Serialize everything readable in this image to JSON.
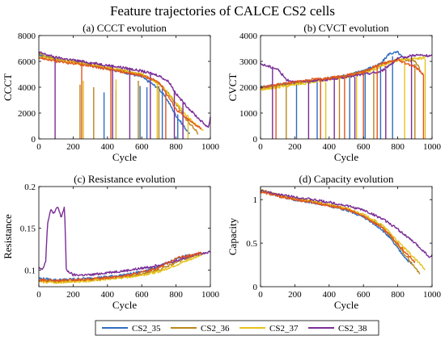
{
  "figure": {
    "title": "Feature trajectories of CALCE CS2 cells"
  },
  "legend": {
    "placement": "bottom",
    "items": [
      {
        "label": "CS2_35",
        "color": "#2f6cc0"
      },
      {
        "label": "CS2_36",
        "color": "#b8861b"
      },
      {
        "label": "CS2_37",
        "color": "#e6c21a"
      },
      {
        "label": "CS2_38",
        "color": "#7a2d96"
      }
    ]
  },
  "chart_data": [
    {
      "type": "line",
      "title": "(a) CCCT evolution",
      "xlabel": "Cycle",
      "ylabel": "CCCT",
      "xlim": [
        0,
        1000
      ],
      "ylim": [
        0,
        8000
      ],
      "xticks": [
        0,
        200,
        400,
        600,
        800,
        1000
      ],
      "yticks": [
        0,
        2000,
        4000,
        6000,
        8000
      ],
      "grid": false,
      "series": [
        {
          "name": "CS2_35",
          "color": "#2f6cc0",
          "x": [
            0,
            100,
            200,
            300,
            400,
            500,
            600,
            700,
            750,
            800,
            850,
            880
          ],
          "y": [
            6500,
            6150,
            5950,
            5700,
            5450,
            5150,
            4800,
            3900,
            3000,
            1800,
            900,
            350
          ],
          "drops": [
            [
              380,
              3600
            ],
            [
              450,
              3800
            ],
            [
              590,
              4100
            ],
            [
              630,
              4000
            ],
            [
              720,
              3900
            ],
            [
              810,
              1900
            ]
          ]
        },
        {
          "name": "CS2_36",
          "color": "#b8861b",
          "x": [
            0,
            100,
            200,
            300,
            400,
            500,
            600,
            700,
            750,
            800,
            860,
            930
          ],
          "y": [
            6600,
            6200,
            6000,
            5800,
            5500,
            5300,
            5000,
            4300,
            3600,
            2700,
            1500,
            400
          ],
          "drops": [
            [
              240,
              4200
            ],
            [
              320,
              4000
            ],
            [
              580,
              4500
            ],
            [
              700,
              4100
            ]
          ]
        },
        {
          "name": "CS2_37",
          "color": "#e6c21a",
          "x": [
            0,
            100,
            200,
            300,
            400,
            500,
            600,
            700,
            750,
            800,
            850,
            900,
            960
          ],
          "y": [
            6400,
            6100,
            5900,
            5700,
            5500,
            5250,
            5000,
            4300,
            3600,
            2800,
            2000,
            1300,
            600
          ],
          "drops": [
            [
              260,
              4500
            ],
            [
              450,
              4600
            ],
            [
              690,
              4300
            ],
            [
              870,
              1500
            ]
          ]
        },
        {
          "name": "CS2_38",
          "color": "#7a2d96",
          "x": [
            0,
            100,
            200,
            300,
            400,
            500,
            600,
            700,
            760,
            800,
            850,
            900,
            960,
            990,
            1000
          ],
          "y": [
            6700,
            6300,
            6100,
            5900,
            5700,
            5500,
            5250,
            4900,
            4400,
            3500,
            2700,
            2000,
            1200,
            900,
            1700
          ],
          "drops": [
            [
              95,
              6200
            ],
            [
              430,
              5700
            ],
            [
              530,
              5500
            ],
            [
              650,
              5200
            ],
            [
              790,
              3700
            ],
            [
              840,
              2800
            ]
          ]
        },
        {
          "name": "",
          "color": "#e2561f",
          "x": [
            0,
            100,
            200,
            300,
            400,
            500,
            600,
            700,
            750,
            800,
            850,
            900,
            950
          ],
          "y": [
            6300,
            6000,
            5850,
            5650,
            5400,
            5150,
            4900,
            4400,
            3400,
            2300,
            1700,
            1200,
            800
          ],
          "drops": [
            [
              250,
              5900
            ],
            [
              420,
              5450
            ],
            [
              740,
              3700
            ]
          ]
        }
      ]
    },
    {
      "type": "line",
      "title": "(b) CVCT evolution",
      "xlabel": "Cycle",
      "ylabel": "CVCT",
      "xlim": [
        0,
        1000
      ],
      "ylim": [
        0,
        4000
      ],
      "xticks": [
        0,
        200,
        400,
        600,
        800,
        1000
      ],
      "yticks": [
        0,
        1000,
        2000,
        3000,
        4000
      ],
      "grid": false,
      "series": [
        {
          "name": "CS2_35",
          "color": "#2f6cc0",
          "x": [
            0,
            100,
            200,
            300,
            400,
            500,
            600,
            700,
            750,
            800,
            850
          ],
          "y": [
            2000,
            2100,
            2150,
            2250,
            2350,
            2450,
            2650,
            2900,
            3300,
            3350,
            3000
          ],
          "drops": [
            [
              210,
              2100
            ],
            [
              330,
              2200
            ],
            [
              520,
              2400
            ],
            [
              610,
              2600
            ],
            [
              700,
              2800
            ],
            [
              770,
              3200
            ]
          ]
        },
        {
          "name": "CS2_36",
          "color": "#b8861b",
          "x": [
            0,
            100,
            200,
            300,
            400,
            500,
            600,
            700,
            800,
            900,
            930
          ],
          "y": [
            1950,
            2050,
            2150,
            2250,
            2350,
            2450,
            2600,
            2850,
            3100,
            3000,
            2700
          ],
          "drops": [
            [
              150,
              2100
            ],
            [
              460,
              2400
            ],
            [
              660,
              2700
            ],
            [
              900,
              2900
            ]
          ]
        },
        {
          "name": "CS2_37",
          "color": "#e6c21a",
          "x": [
            0,
            100,
            200,
            300,
            400,
            500,
            600,
            700,
            800,
            900,
            960
          ],
          "y": [
            1900,
            2000,
            2100,
            2200,
            2300,
            2400,
            2550,
            2800,
            3050,
            3100,
            3150
          ],
          "drops": [
            [
              380,
              2200
            ],
            [
              560,
              2450
            ],
            [
              840,
              3000
            ],
            [
              960,
              3100
            ]
          ]
        },
        {
          "name": "CS2_38",
          "color": "#7a2d96",
          "x": [
            0,
            50,
            100,
            150,
            200,
            300,
            400,
            500,
            600,
            700,
            800,
            900,
            1000
          ],
          "y": [
            2900,
            2800,
            2700,
            2300,
            2200,
            2250,
            2300,
            2400,
            2500,
            2600,
            3100,
            3250,
            3200
          ],
          "drops": [
            [
              70,
              2800
            ],
            [
              280,
              2200
            ],
            [
              430,
              2300
            ],
            [
              550,
              2400
            ],
            [
              730,
              2700
            ],
            [
              880,
              3200
            ]
          ]
        },
        {
          "name": "",
          "color": "#e2561f",
          "x": [
            0,
            100,
            200,
            300,
            400,
            500,
            600,
            700,
            800,
            900,
            950
          ],
          "y": [
            2000,
            2100,
            2200,
            2300,
            2350,
            2450,
            2600,
            2900,
            3050,
            2800,
            2500
          ],
          "drops": [
            [
              90,
              2100
            ],
            [
              350,
              2300
            ],
            [
              490,
              2400
            ],
            [
              600,
              2600
            ],
            [
              680,
              2850
            ],
            [
              950,
              2500
            ]
          ]
        }
      ]
    },
    {
      "type": "line",
      "title": "(c) Resistance evolution",
      "xlabel": "Cycle",
      "ylabel": "Resistance",
      "xlim": [
        0,
        1000
      ],
      "ylim": [
        0.08,
        0.2
      ],
      "xticks": [
        0,
        200,
        400,
        600,
        800,
        1000
      ],
      "yticks": [
        0.1,
        0.15,
        0.2
      ],
      "grid": false,
      "series": [
        {
          "name": "CS2_35",
          "color": "#2f6cc0",
          "x": [
            0,
            100,
            200,
            300,
            400,
            500,
            600,
            700,
            800,
            850,
            900
          ],
          "y": [
            0.09,
            0.088,
            0.089,
            0.09,
            0.092,
            0.094,
            0.098,
            0.104,
            0.113,
            0.117,
            0.118
          ]
        },
        {
          "name": "CS2_36",
          "color": "#b8861b",
          "x": [
            0,
            100,
            200,
            300,
            400,
            500,
            600,
            700,
            800,
            900,
            950
          ],
          "y": [
            0.087,
            0.086,
            0.087,
            0.088,
            0.09,
            0.092,
            0.095,
            0.1,
            0.109,
            0.117,
            0.12
          ]
        },
        {
          "name": "CS2_37",
          "color": "#e6c21a",
          "x": [
            0,
            100,
            200,
            300,
            400,
            500,
            600,
            700,
            800,
            900,
            960
          ],
          "y": [
            0.086,
            0.085,
            0.086,
            0.087,
            0.089,
            0.091,
            0.094,
            0.098,
            0.106,
            0.114,
            0.12
          ]
        },
        {
          "name": "CS2_38",
          "color": "#7a2d96",
          "x": [
            0,
            20,
            40,
            50,
            70,
            90,
            110,
            130,
            150,
            160,
            200,
            300,
            400,
            500,
            600,
            700,
            800,
            900,
            1000
          ],
          "y": [
            0.104,
            0.101,
            0.11,
            0.155,
            0.172,
            0.168,
            0.176,
            0.163,
            0.176,
            0.1,
            0.094,
            0.094,
            0.097,
            0.099,
            0.102,
            0.106,
            0.111,
            0.118,
            0.122
          ]
        },
        {
          "name": "",
          "color": "#e2561f",
          "x": [
            0,
            100,
            200,
            300,
            400,
            500,
            600,
            700,
            800,
            900,
            950
          ],
          "y": [
            0.088,
            0.087,
            0.088,
            0.089,
            0.091,
            0.093,
            0.097,
            0.103,
            0.114,
            0.118,
            0.121
          ]
        }
      ]
    },
    {
      "type": "line",
      "title": "(d) Capacity evolution",
      "xlabel": "Cycle",
      "ylabel": "Capacity",
      "xlim": [
        0,
        1000
      ],
      "ylim": [
        0,
        1.15
      ],
      "xticks": [
        0,
        200,
        400,
        600,
        800,
        1000
      ],
      "yticks": [
        0,
        0.5,
        1
      ],
      "grid": false,
      "series": [
        {
          "name": "CS2_35",
          "color": "#2f6cc0",
          "x": [
            0,
            100,
            200,
            300,
            400,
            500,
            600,
            700,
            750,
            800,
            850,
            880
          ],
          "y": [
            1.1,
            1.05,
            1.0,
            0.97,
            0.93,
            0.88,
            0.8,
            0.67,
            0.57,
            0.44,
            0.32,
            0.26
          ]
        },
        {
          "name": "CS2_36",
          "color": "#b8861b",
          "x": [
            0,
            100,
            200,
            300,
            400,
            500,
            600,
            700,
            750,
            800,
            850,
            900,
            930
          ],
          "y": [
            1.11,
            1.06,
            1.01,
            0.98,
            0.94,
            0.89,
            0.82,
            0.7,
            0.6,
            0.47,
            0.35,
            0.22,
            0.15
          ]
        },
        {
          "name": "CS2_37",
          "color": "#e6c21a",
          "x": [
            0,
            100,
            200,
            300,
            400,
            500,
            600,
            700,
            750,
            800,
            850,
            900,
            960
          ],
          "y": [
            1.1,
            1.05,
            1.01,
            0.98,
            0.94,
            0.9,
            0.83,
            0.72,
            0.63,
            0.52,
            0.42,
            0.32,
            0.2
          ]
        },
        {
          "name": "CS2_38",
          "color": "#7a2d96",
          "x": [
            0,
            100,
            200,
            300,
            400,
            500,
            600,
            700,
            750,
            800,
            850,
            900,
            950,
            990,
            1000
          ],
          "y": [
            1.1,
            1.06,
            1.03,
            1.0,
            0.97,
            0.93,
            0.88,
            0.79,
            0.73,
            0.66,
            0.58,
            0.5,
            0.41,
            0.33,
            0.37
          ]
        },
        {
          "name": "",
          "color": "#e2561f",
          "x": [
            0,
            100,
            200,
            300,
            400,
            500,
            600,
            700,
            750,
            800,
            850,
            900
          ],
          "y": [
            1.09,
            1.04,
            1.0,
            0.97,
            0.93,
            0.89,
            0.81,
            0.69,
            0.6,
            0.49,
            0.38,
            0.28
          ]
        }
      ]
    }
  ]
}
